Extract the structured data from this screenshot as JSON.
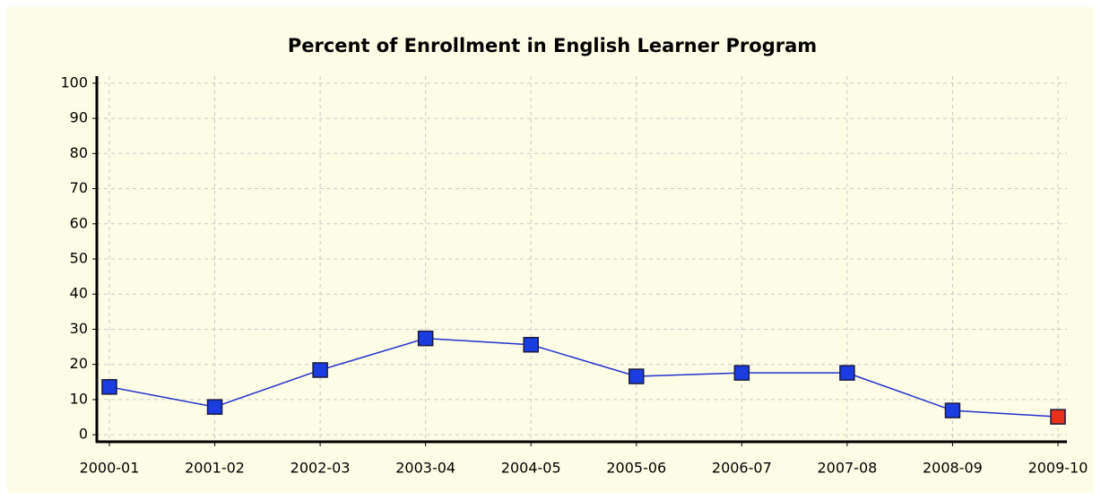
{
  "chart_data": {
    "type": "line",
    "title": "Percent of Enrollment in English Learner Program",
    "categories": [
      "2000-01",
      "2001-02",
      "2002-03",
      "2003-04",
      "2004-05",
      "2005-06",
      "2006-07",
      "2007-08",
      "2008-09",
      "2009-10"
    ],
    "values": [
      13.6,
      7.9,
      18.4,
      27.4,
      25.6,
      16.6,
      17.6,
      17.6,
      6.9,
      5.1
    ],
    "color": "#2233cc",
    "marker_colors": [
      "#1a3ce0",
      "#1a3ce0",
      "#1a3ce0",
      "#1a3ce0",
      "#1a3ce0",
      "#1a3ce0",
      "#1a3ce0",
      "#1a3ce0",
      "#1a3ce0",
      "#e8301a"
    ],
    "ylim": [
      -2,
      102
    ],
    "yticks": [
      0,
      10,
      20,
      30,
      40,
      50,
      60,
      70,
      80,
      90,
      100
    ],
    "grid": true
  }
}
